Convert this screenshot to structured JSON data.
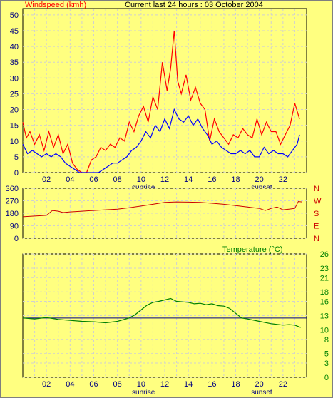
{
  "colors": {
    "background": "#ffff80",
    "gust": "#ff0000",
    "speed": "#0000ff",
    "direction": "#cc0000",
    "temperature": "#008000",
    "reference_line": "#000080",
    "grid": "#d0d0d0",
    "sunrise_sunset_text": "#000080"
  },
  "chart_data": [
    {
      "type": "line",
      "title": "Current last 24 hours : 03 October 2004",
      "ylabel": "Windspeed (kmh)",
      "xlabel": "",
      "x_ticks": [
        "02",
        "04",
        "06",
        "08",
        "10",
        "12",
        "14",
        "16",
        "18",
        "20",
        "22"
      ],
      "x_range": [
        0,
        24
      ],
      "ylim": [
        0,
        52
      ],
      "y_ticks": [
        0,
        5,
        10,
        15,
        20,
        25,
        30,
        35,
        40,
        45,
        50
      ],
      "grid": true,
      "annotations": [
        {
          "text": "sunrise",
          "x": 10.2
        },
        {
          "text": "sunset",
          "x": 20.2
        }
      ],
      "series": [
        {
          "role": "gust",
          "x": [
            0.0,
            0.3,
            0.6,
            1.0,
            1.4,
            1.8,
            2.2,
            2.6,
            3.0,
            3.4,
            3.8,
            4.2,
            4.6,
            5.0,
            5.4,
            5.8,
            6.2,
            6.6,
            7.0,
            7.4,
            7.8,
            8.2,
            8.6,
            9.0,
            9.4,
            9.8,
            10.2,
            10.6,
            11.0,
            11.4,
            11.8,
            12.2,
            12.5,
            12.8,
            13.1,
            13.4,
            13.8,
            14.2,
            14.6,
            15.0,
            15.4,
            15.8,
            16.2,
            16.6,
            17.0,
            17.4,
            17.8,
            18.2,
            18.6,
            19.0,
            19.4,
            19.8,
            20.2,
            20.6,
            21.0,
            21.4,
            21.8,
            22.2,
            22.6,
            23.0,
            23.4
          ],
          "values": [
            16,
            11,
            13,
            9,
            12,
            7,
            13,
            8,
            12,
            6,
            9,
            3,
            1,
            0,
            0,
            4,
            5,
            8,
            7,
            9,
            8,
            11,
            10,
            16,
            13,
            18,
            21,
            16,
            24,
            20,
            35,
            26,
            33,
            45,
            29,
            25,
            31,
            23,
            27,
            22,
            20,
            10,
            17,
            13,
            11,
            9,
            12,
            11,
            14,
            12,
            11,
            17,
            12,
            16,
            13,
            13,
            9,
            12,
            15,
            22,
            17
          ]
        },
        {
          "role": "speed",
          "x": [
            0.0,
            0.4,
            0.8,
            1.2,
            1.6,
            2.0,
            2.4,
            2.8,
            3.2,
            3.6,
            4.0,
            4.4,
            4.8,
            5.2,
            5.6,
            6.0,
            6.4,
            6.8,
            7.2,
            7.6,
            8.0,
            8.4,
            8.8,
            9.2,
            9.6,
            10.0,
            10.4,
            10.8,
            11.2,
            11.6,
            12.0,
            12.4,
            12.8,
            13.2,
            13.6,
            14.0,
            14.4,
            14.8,
            15.2,
            15.6,
            16.0,
            16.4,
            16.8,
            17.2,
            17.6,
            18.0,
            18.4,
            18.8,
            19.2,
            19.6,
            20.0,
            20.4,
            20.8,
            21.2,
            21.6,
            22.0,
            22.4,
            22.8,
            23.2,
            23.4
          ],
          "values": [
            9,
            6,
            7,
            6,
            5,
            6,
            5,
            6,
            5,
            3,
            2,
            1,
            0,
            0,
            0,
            0,
            0,
            1,
            2,
            3,
            3,
            4,
            5,
            7,
            8,
            10,
            13,
            11,
            15,
            13,
            17,
            14,
            20,
            17,
            16,
            18,
            15,
            17,
            14,
            12,
            9,
            10,
            8,
            7,
            6,
            6,
            7,
            6,
            7,
            5,
            5,
            8,
            6,
            7,
            6,
            6,
            5,
            7,
            9,
            12
          ]
        }
      ]
    },
    {
      "type": "line",
      "title": "",
      "ylim": [
        0,
        360
      ],
      "y_ticks": [
        0,
        90,
        180,
        270,
        360
      ],
      "right_labels": [
        "N",
        "W",
        "S",
        "E",
        "N"
      ],
      "x_range": [
        0,
        24
      ],
      "grid": true,
      "series": [
        {
          "role": "direction",
          "x": [
            0.0,
            1.0,
            2.0,
            2.5,
            3.0,
            3.4,
            4.0,
            5.0,
            6.0,
            7.0,
            8.0,
            9.0,
            10.0,
            11.0,
            12.0,
            13.0,
            14.0,
            15.0,
            16.0,
            17.0,
            18.0,
            19.0,
            20.0,
            20.5,
            21.0,
            21.5,
            22.0,
            22.5,
            23.0,
            23.3,
            23.6
          ],
          "values": [
            155,
            160,
            165,
            200,
            195,
            185,
            190,
            195,
            200,
            205,
            210,
            220,
            232,
            245,
            258,
            262,
            260,
            258,
            252,
            245,
            235,
            225,
            215,
            200,
            215,
            225,
            205,
            210,
            215,
            265,
            262
          ]
        }
      ]
    },
    {
      "type": "line",
      "title": "Temperature (°C)",
      "ylim": [
        0,
        26
      ],
      "y_ticks": [
        0,
        3,
        5,
        8,
        10,
        13,
        16,
        18,
        21,
        23,
        26
      ],
      "x_ticks": [
        "02",
        "04",
        "06",
        "08",
        "10",
        "12",
        "14",
        "16",
        "18",
        "20",
        "22"
      ],
      "x_range": [
        0,
        24
      ],
      "grid": true,
      "reference_line": 12.5,
      "annotations": [
        {
          "text": "sunrise",
          "x": 10.2
        },
        {
          "text": "sunset",
          "x": 20.2
        }
      ],
      "series": [
        {
          "role": "temperature",
          "x": [
            0.0,
            1.0,
            2.0,
            3.0,
            4.0,
            5.0,
            6.0,
            7.0,
            8.0,
            9.0,
            9.5,
            10.0,
            10.5,
            11.0,
            11.5,
            12.0,
            12.5,
            13.0,
            13.5,
            14.0,
            14.5,
            15.0,
            15.5,
            16.0,
            16.5,
            17.0,
            17.5,
            18.0,
            18.5,
            19.0,
            20.0,
            21.0,
            22.0,
            22.5,
            23.0,
            23.5
          ],
          "values": [
            12.5,
            12.3,
            12.6,
            12.2,
            12.0,
            11.8,
            11.7,
            11.5,
            11.8,
            12.5,
            13.2,
            14.2,
            15.2,
            15.8,
            16.0,
            16.3,
            16.6,
            16.0,
            15.9,
            15.8,
            15.5,
            15.6,
            15.3,
            15.5,
            15.1,
            15.0,
            14.5,
            13.5,
            12.5,
            12.3,
            11.8,
            11.3,
            11.0,
            11.1,
            11.0,
            10.5
          ]
        }
      ]
    }
  ]
}
